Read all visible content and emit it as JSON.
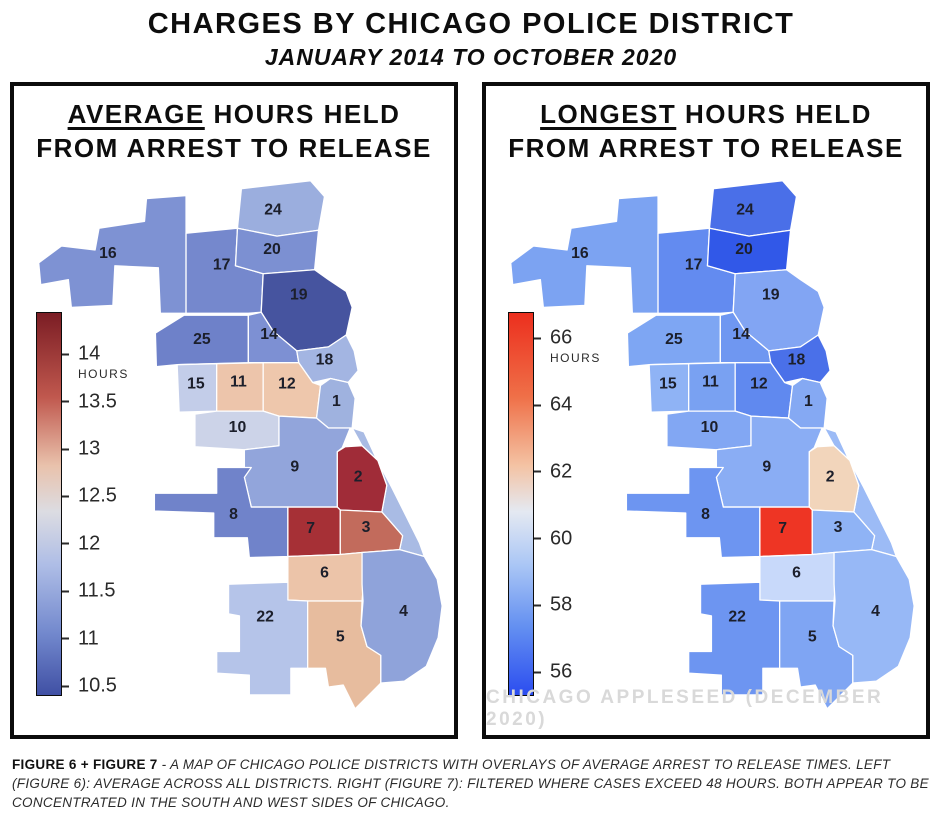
{
  "header": {
    "title": "CHARGES BY CHICAGO POLICE DISTRICT",
    "subtitle": "JANUARY 2014 TO OCTOBER 2020"
  },
  "panels": [
    {
      "figure": "Figure 6",
      "title_em": "AVERAGE",
      "title_rest": " HOURS HELD",
      "title_line2": "FROM ARREST TO RELEASE",
      "colorbar": {
        "unit": "HOURS",
        "scale_max": 14.45,
        "scale_min": 10.4,
        "ticks": [
          14,
          13.5,
          13,
          12.5,
          12,
          11.5,
          11,
          10.5
        ],
        "gradient": [
          "#7b1d24",
          "#c0584e 22%",
          "#e9c2ac 40%",
          "#dcdce2 52%",
          "#aebde6 66%",
          "#7288cd 84%",
          "#4050a4"
        ]
      }
    },
    {
      "figure": "Figure 7",
      "title_em": "LONGEST",
      "title_rest": " HOURS HELD",
      "title_line2": "FROM ARREST TO RELEASE",
      "watermark": "CHICAGO APPLESEED (DECEMBER 2020)",
      "colorbar": {
        "unit": "HOURS",
        "scale_max": 66.8,
        "scale_min": 55.3,
        "ticks": [
          66,
          64,
          62,
          60,
          58,
          56
        ],
        "gradient": [
          "#ec2f1e",
          "#ef7048 22%",
          "#f4c3a4 40%",
          "#e4e9f2 52%",
          "#aac6f5 66%",
          "#6490f1 82%",
          "#2b4df0"
        ]
      }
    }
  ],
  "lakefront": {
    "avg_color": "#a9bbe4",
    "long_color": "#9cbbf6"
  },
  "districts": [
    {
      "number": "16",
      "avg_color": "#7e92d3",
      "long_color": "#7ca3f2",
      "avg_hours": 11.1,
      "longest_hours": 59.5
    },
    {
      "number": "17",
      "avg_color": "#7588cd",
      "long_color": "#638bf0",
      "avg_hours": 11.0,
      "longest_hours": 58.5
    },
    {
      "number": "24",
      "avg_color": "#9baede",
      "long_color": "#4a6fe8",
      "avg_hours": 11.3,
      "longest_hours": 57.0
    },
    {
      "number": "20",
      "avg_color": "#7c90d2",
      "long_color": "#3158e8",
      "avg_hours": 11.0,
      "longest_hours": 56.5
    },
    {
      "number": "19",
      "avg_color": "#46549f",
      "long_color": "#82a5f3",
      "avg_hours": 10.5,
      "longest_hours": 59.5
    },
    {
      "number": "25",
      "avg_color": "#6e81c9",
      "long_color": "#7ea6f3",
      "avg_hours": 10.9,
      "longest_hours": 59.5
    },
    {
      "number": "14",
      "avg_color": "#7d90d3",
      "long_color": "#6f97f1",
      "avg_hours": 11.1,
      "longest_hours": 59.0
    },
    {
      "number": "18",
      "avg_color": "#a3b5e2",
      "long_color": "#4a70e9",
      "avg_hours": 11.4,
      "longest_hours": 57.0
    },
    {
      "number": "15",
      "avg_color": "#c3cde9",
      "long_color": "#8fb3f5",
      "avg_hours": 11.9,
      "longest_hours": 60.0
    },
    {
      "number": "11",
      "avg_color": "#edc5ab",
      "long_color": "#79a1f2",
      "avg_hours": 12.8,
      "longest_hours": 59.5
    },
    {
      "number": "12",
      "avg_color": "#eec7ac",
      "long_color": "#6089ef",
      "avg_hours": 12.8,
      "longest_hours": 58.5
    },
    {
      "number": "1",
      "avg_color": "#9fb2df",
      "long_color": "#85a9f3",
      "avg_hours": 11.5,
      "longest_hours": 59.5
    },
    {
      "number": "10",
      "avg_color": "#ccd3e8",
      "long_color": "#82a7f3",
      "avg_hours": 12.0,
      "longest_hours": 59.5
    },
    {
      "number": "9",
      "avg_color": "#92a5db",
      "long_color": "#8aadf4",
      "avg_hours": 11.4,
      "longest_hours": 60.0
    },
    {
      "number": "2",
      "avg_color": "#a02c38",
      "long_color": "#f2d5bb",
      "avg_hours": 13.9,
      "longest_hours": 62.5
    },
    {
      "number": "8",
      "avg_color": "#7083ca",
      "long_color": "#6d95f1",
      "avg_hours": 11.0,
      "longest_hours": 59.0
    },
    {
      "number": "7",
      "avg_color": "#a63036",
      "long_color": "#ee3524",
      "avg_hours": 13.8,
      "longest_hours": 65.5
    },
    {
      "number": "3",
      "avg_color": "#c26b5c",
      "long_color": "#8fb3f5",
      "avg_hours": 13.3,
      "longest_hours": 60.0
    },
    {
      "number": "6",
      "avg_color": "#ecc4a9",
      "long_color": "#c8d9fa",
      "avg_hours": 12.7,
      "longest_hours": 60.5
    },
    {
      "number": "22",
      "avg_color": "#b5c4e9",
      "long_color": "#6d95f1",
      "avg_hours": 11.6,
      "longest_hours": 59.0
    },
    {
      "number": "5",
      "avg_color": "#e7bc9e",
      "long_color": "#7fa5f3",
      "avg_hours": 12.9,
      "longest_hours": 59.5
    },
    {
      "number": "4",
      "avg_color": "#8fa3da",
      "long_color": "#97b8f6",
      "avg_hours": 11.3,
      "longest_hours": 60.0
    }
  ],
  "caption": {
    "lead": "FIGURE 6 + FIGURE 7",
    "body": " - A MAP OF CHICAGO POLICE DISTRICTS WITH OVERLAYS OF AVERAGE ARREST TO RELEASE TIMES. LEFT (FIGURE 6): AVERAGE ACROSS ALL DISTRICTS. RIGHT (FIGURE 7): FILTERED WHERE CASES EXCEED 48 HOURS. BOTH APPEAR TO BE CONCENTRATED IN THE SOUTH AND WEST SIDES OF CHICAGO."
  },
  "chart_data": [
    {
      "type": "heatmap",
      "subtype": "choropleth-map",
      "title": "AVERAGE HOURS HELD FROM ARREST TO RELEASE",
      "region": "Chicago police districts",
      "unit": "HOURS",
      "colorbar_ticks": [
        14,
        13.5,
        13,
        12.5,
        12,
        11.5,
        11,
        10.5
      ],
      "colorbar_range": [
        10.4,
        14.45
      ],
      "legend_position": "left",
      "categories": [
        "1",
        "2",
        "3",
        "4",
        "5",
        "6",
        "7",
        "8",
        "9",
        "10",
        "11",
        "12",
        "14",
        "15",
        "16",
        "17",
        "18",
        "19",
        "20",
        "22",
        "24",
        "25"
      ],
      "values": [
        11.5,
        13.9,
        13.3,
        11.3,
        12.9,
        12.7,
        13.8,
        11.0,
        11.4,
        12.0,
        12.8,
        12.8,
        11.1,
        11.9,
        11.1,
        11.0,
        11.4,
        10.5,
        11.0,
        11.6,
        11.3,
        10.9
      ]
    },
    {
      "type": "heatmap",
      "subtype": "choropleth-map",
      "title": "LONGEST HOURS HELD FROM ARREST TO RELEASE",
      "region": "Chicago police districts",
      "unit": "HOURS",
      "colorbar_ticks": [
        66,
        64,
        62,
        60,
        58,
        56
      ],
      "colorbar_range": [
        55.3,
        66.8
      ],
      "legend_position": "left",
      "categories": [
        "1",
        "2",
        "3",
        "4",
        "5",
        "6",
        "7",
        "8",
        "9",
        "10",
        "11",
        "12",
        "14",
        "15",
        "16",
        "17",
        "18",
        "19",
        "20",
        "22",
        "24",
        "25"
      ],
      "values": [
        59.5,
        62.5,
        60.0,
        60.0,
        59.5,
        60.5,
        65.5,
        59.0,
        60.0,
        59.5,
        59.5,
        58.5,
        59.0,
        60.0,
        59.5,
        58.5,
        57.0,
        59.5,
        56.5,
        59.0,
        57.0,
        59.5
      ]
    }
  ]
}
